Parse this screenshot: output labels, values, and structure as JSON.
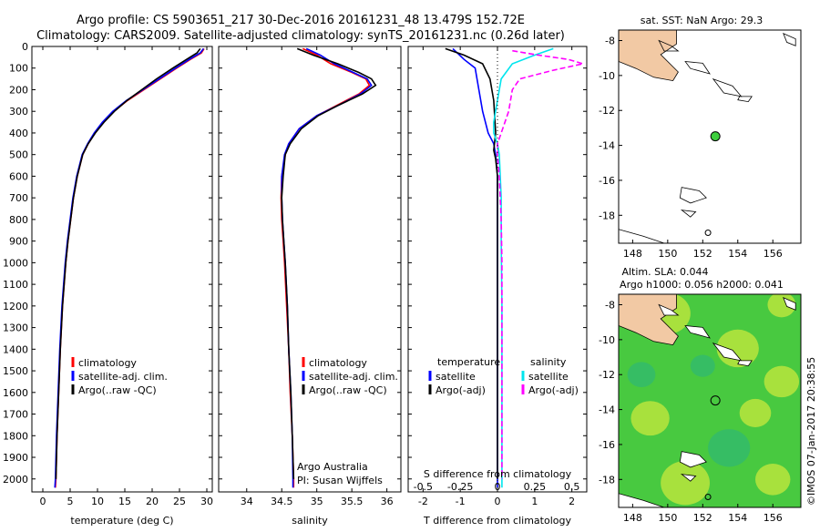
{
  "title_line1": "Argo profile: CS 5903651_217 30-Dec-2016 20161231_48 13.479S 152.72E",
  "title_line2": "Climatology: CARS2009. Satellite-adjusted climatology: synTS_20161231.nc (0.26d later)",
  "side_label": "©IMOS 07-Jan-2017 20:38:55",
  "depth_ticks": [
    0,
    100,
    200,
    300,
    400,
    500,
    600,
    700,
    800,
    900,
    1000,
    1100,
    1200,
    1300,
    1400,
    1500,
    1600,
    1700,
    1800,
    1900,
    2000
  ],
  "chart_data": [
    {
      "type": "line",
      "id": "temperature",
      "xlabel": "temperature (deg C)",
      "ylabel": "",
      "xlim": [
        -2,
        31
      ],
      "ylim": [
        2060,
        0
      ],
      "xticks": [
        0,
        5,
        10,
        15,
        20,
        25,
        30
      ],
      "legend": [
        "climatology",
        "satellite-adj. clim.",
        "Argo(..raw -QC)"
      ],
      "series": [
        {
          "name": "climatology",
          "color": "#ff0000",
          "points": [
            [
              29.5,
              10
            ],
            [
              29,
              30
            ],
            [
              27,
              60
            ],
            [
              24.5,
              100
            ],
            [
              21.5,
              150
            ],
            [
              18.5,
              200
            ],
            [
              15.5,
              250
            ],
            [
              13,
              300
            ],
            [
              11,
              350
            ],
            [
              9.5,
              400
            ],
            [
              8.3,
              450
            ],
            [
              7.3,
              500
            ],
            [
              6.3,
              600
            ],
            [
              5.6,
              700
            ],
            [
              5.1,
              800
            ],
            [
              4.6,
              900
            ],
            [
              4.2,
              1000
            ],
            [
              3.6,
              1200
            ],
            [
              3.2,
              1400
            ],
            [
              2.9,
              1600
            ],
            [
              2.6,
              1800
            ],
            [
              2.4,
              2000
            ],
            [
              2.3,
              2040
            ]
          ]
        },
        {
          "name": "satellite-adj. clim.",
          "color": "#0000ff",
          "points": [
            [
              29.4,
              10
            ],
            [
              28.8,
              30
            ],
            [
              26.8,
              60
            ],
            [
              24.3,
              100
            ],
            [
              21.3,
              150
            ],
            [
              18.3,
              200
            ],
            [
              15.3,
              250
            ],
            [
              12.8,
              300
            ],
            [
              10.9,
              350
            ],
            [
              9.4,
              400
            ],
            [
              8.2,
              450
            ],
            [
              7.2,
              500
            ],
            [
              6.2,
              600
            ],
            [
              5.5,
              700
            ],
            [
              5,
              800
            ],
            [
              4.5,
              900
            ],
            [
              4.1,
              1000
            ],
            [
              3.5,
              1200
            ],
            [
              3.1,
              1400
            ],
            [
              2.8,
              1600
            ],
            [
              2.5,
              1800
            ],
            [
              2.3,
              2000
            ],
            [
              2.2,
              2040
            ]
          ]
        },
        {
          "name": "Argo(..raw -QC)",
          "color": "#000000",
          "points": [
            [
              28.8,
              10
            ],
            [
              28.2,
              30
            ],
            [
              26.3,
              60
            ],
            [
              23.8,
              100
            ],
            [
              20.8,
              150
            ],
            [
              18.1,
              200
            ],
            [
              15.4,
              250
            ],
            [
              13.1,
              300
            ],
            [
              11.2,
              350
            ],
            [
              9.6,
              400
            ],
            [
              8.3,
              450
            ],
            [
              7.3,
              500
            ],
            [
              6.3,
              600
            ],
            [
              5.6,
              700
            ],
            [
              5.1,
              800
            ],
            [
              4.6,
              900
            ],
            [
              4.2,
              1000
            ],
            [
              3.6,
              1200
            ],
            [
              3.2,
              1400
            ],
            [
              2.9,
              1600
            ],
            [
              2.6,
              1800
            ],
            [
              2.4,
              2000
            ]
          ]
        }
      ]
    },
    {
      "type": "line",
      "id": "salinity",
      "xlabel": "salinity",
      "xlim": [
        33.6,
        36.2
      ],
      "ylim": [
        2060,
        0
      ],
      "xticks": [
        34,
        34.5,
        35,
        35.5,
        36
      ],
      "legend": [
        "climatology",
        "satellite-adj. clim.",
        "Argo(..raw -QC)"
      ],
      "note_line1": "Argo Australia",
      "note_line2": "PI: Susan Wijffels",
      "series": [
        {
          "name": "climatology",
          "color": "#ff0000",
          "points": [
            [
              34.8,
              10
            ],
            [
              35.0,
              40
            ],
            [
              35.2,
              80
            ],
            [
              35.5,
              120
            ],
            [
              35.7,
              150
            ],
            [
              35.75,
              180
            ],
            [
              35.6,
              220
            ],
            [
              35.3,
              270
            ],
            [
              35.0,
              320
            ],
            [
              34.75,
              380
            ],
            [
              34.6,
              450
            ],
            [
              34.55,
              500
            ],
            [
              34.5,
              600
            ],
            [
              34.49,
              700
            ],
            [
              34.5,
              800
            ],
            [
              34.52,
              900
            ],
            [
              34.54,
              1000
            ],
            [
              34.57,
              1200
            ],
            [
              34.6,
              1400
            ],
            [
              34.62,
              1600
            ],
            [
              34.65,
              1800
            ],
            [
              34.67,
              2000
            ],
            [
              34.67,
              2040
            ]
          ]
        },
        {
          "name": "satellite-adj. clim.",
          "color": "#0000ff",
          "points": [
            [
              34.85,
              10
            ],
            [
              35.05,
              40
            ],
            [
              35.25,
              80
            ],
            [
              35.52,
              120
            ],
            [
              35.72,
              150
            ],
            [
              35.78,
              180
            ],
            [
              35.62,
              220
            ],
            [
              35.32,
              270
            ],
            [
              35.0,
              320
            ],
            [
              34.75,
              380
            ],
            [
              34.6,
              450
            ],
            [
              34.54,
              500
            ],
            [
              34.5,
              600
            ],
            [
              34.5,
              700
            ],
            [
              34.51,
              800
            ],
            [
              34.53,
              900
            ],
            [
              34.55,
              1000
            ],
            [
              34.58,
              1200
            ],
            [
              34.6,
              1400
            ],
            [
              34.63,
              1600
            ],
            [
              34.65,
              1800
            ],
            [
              34.66,
              2000
            ],
            [
              34.66,
              2040
            ]
          ]
        },
        {
          "name": "Argo(..raw -QC)",
          "color": "#000000",
          "points": [
            [
              34.72,
              10
            ],
            [
              34.95,
              40
            ],
            [
              35.3,
              80
            ],
            [
              35.6,
              120
            ],
            [
              35.78,
              150
            ],
            [
              35.84,
              180
            ],
            [
              35.65,
              220
            ],
            [
              35.32,
              270
            ],
            [
              35.02,
              320
            ],
            [
              34.78,
              380
            ],
            [
              34.62,
              450
            ],
            [
              34.55,
              500
            ],
            [
              34.52,
              600
            ],
            [
              34.5,
              700
            ],
            [
              34.51,
              800
            ],
            [
              34.53,
              900
            ],
            [
              34.55,
              1000
            ],
            [
              34.58,
              1200
            ],
            [
              34.6,
              1400
            ],
            [
              34.63,
              1600
            ],
            [
              34.65,
              1800
            ],
            [
              34.67,
              2000
            ]
          ]
        }
      ]
    },
    {
      "type": "line",
      "id": "difference",
      "xlabel": "T difference from climatology",
      "xlabel_top": "S difference from climatology",
      "xlim": [
        -2.4,
        2.4
      ],
      "ylim": [
        2060,
        0
      ],
      "xticks": [
        -2,
        -1,
        0,
        1,
        2
      ],
      "xticks_top_labels": [
        "-0.5",
        "-0.25",
        "0",
        "0.25",
        "0.5"
      ],
      "xticks_top_values": [
        -2,
        -1,
        0,
        1,
        2
      ],
      "legend_temp_title": "temperature",
      "legend_sal_title": "salinity",
      "legend": [
        "satellite",
        "Argo(-adj)",
        "satellite",
        "Argo(-adj)"
      ],
      "series": [
        {
          "name": "T satellite",
          "color": "#0000ff",
          "points": [
            [
              -1.2,
              10
            ],
            [
              -0.9,
              60
            ],
            [
              -0.6,
              100
            ],
            [
              -0.5,
              200
            ],
            [
              -0.4,
              300
            ],
            [
              -0.25,
              400
            ],
            [
              -0.1,
              450
            ],
            [
              -0.05,
              500
            ],
            [
              0,
              600
            ],
            [
              0,
              800
            ],
            [
              0,
              1000
            ],
            [
              0,
              2040
            ]
          ]
        },
        {
          "name": "T Argo(-adj)",
          "color": "#000000",
          "points": [
            [
              -1.4,
              10
            ],
            [
              -0.9,
              40
            ],
            [
              -0.4,
              80
            ],
            [
              -0.2,
              150
            ],
            [
              -0.1,
              250
            ],
            [
              -0.05,
              400
            ],
            [
              -0.1,
              480
            ],
            [
              -0.05,
              520
            ],
            [
              0,
              600
            ],
            [
              0,
              1000
            ],
            [
              0,
              1400
            ],
            [
              0,
              2000
            ]
          ]
        },
        {
          "name": "S satellite",
          "color": "#00e5ee",
          "points": [
            [
              1.5,
              10
            ],
            [
              1.0,
              40
            ],
            [
              0.4,
              80
            ],
            [
              0.1,
              150
            ],
            [
              0.0,
              250
            ],
            [
              -0.1,
              350
            ],
            [
              -0.1,
              400
            ],
            [
              0.0,
              450
            ],
            [
              0.05,
              500
            ],
            [
              0.1,
              700
            ],
            [
              0.1,
              900
            ],
            [
              0.12,
              1200
            ],
            [
              0.12,
              1600
            ],
            [
              0.12,
              2040
            ]
          ]
        },
        {
          "name": "S Argo(-adj)",
          "color": "#ff00ff",
          "points": [
            [
              0.4,
              20
            ],
            [
              1.1,
              40
            ],
            [
              1.9,
              60
            ],
            [
              2.3,
              80
            ],
            [
              1.5,
              110
            ],
            [
              0.6,
              150
            ],
            [
              0.4,
              200
            ],
            [
              0.3,
              300
            ],
            [
              0.1,
              400
            ],
            [
              0.0,
              450
            ],
            [
              0.0,
              500
            ],
            [
              0.05,
              600
            ],
            [
              0.1,
              800
            ],
            [
              0.12,
              1000
            ],
            [
              0.12,
              1400
            ],
            [
              0.12,
              1800
            ],
            [
              0.12,
              2000
            ]
          ]
        }
      ]
    }
  ],
  "maps": [
    {
      "id": "sst-map",
      "title": "sat. SST: NaN Argo: 29.3",
      "xticks": [
        148,
        150,
        152,
        154,
        156
      ],
      "yticks": [
        -8,
        -10,
        -12,
        -14,
        -16,
        -18
      ],
      "xlim": [
        147.2,
        157.6
      ],
      "ylim": [
        -19.6,
        -7.4
      ],
      "argo_lon": 152.72,
      "argo_lat": -13.479
    },
    {
      "id": "sla-map",
      "title_line1": "Altim. SLA: 0.044",
      "title_line2": "Argo h1000: 0.056 h2000: 0.041",
      "xticks": [
        148,
        150,
        152,
        154,
        156
      ],
      "yticks": [
        -8,
        -10,
        -12,
        -14,
        -16,
        -18
      ],
      "xlim": [
        147.2,
        157.6
      ],
      "ylim": [
        -19.6,
        -7.4
      ],
      "argo_lon": 152.72,
      "argo_lat": -13.479
    }
  ],
  "colors": {
    "land": "#f2c9a4",
    "sea_green": "#48c940",
    "sea_yellow": "#c8e83c",
    "sea_teal": "#30b870",
    "argo_dot": "#3ecf3e"
  }
}
